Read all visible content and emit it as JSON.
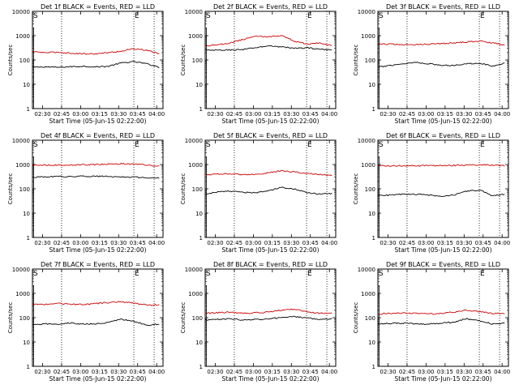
{
  "figure": {
    "xlabel": "Start Time (05-Jun-15 02:22:00)",
    "ylabel": "Counts/sec",
    "x_ticks": [
      "02:30",
      "02:45",
      "03:00",
      "03:15",
      "03:30",
      "03:45",
      "04:00"
    ],
    "y_ticks": [
      "1",
      "10",
      "100",
      "1000",
      "10000"
    ]
  },
  "chart_data": [
    {
      "type": "line",
      "title": "Det 1f BLACK = Events, RED = LLD",
      "xlabel": "Start Time (05-Jun-15 02:22:00)",
      "ylabel": "Counts/sec",
      "x_range_min": [
        0,
        103
      ],
      "y_scale": "log",
      "ylim": [
        1,
        10000
      ],
      "x_min": [
        0,
        10,
        20,
        30,
        40,
        50,
        60,
        70,
        80,
        90,
        100
      ],
      "series": [
        {
          "name": "Events",
          "color": "#000000",
          "values": [
            50,
            52,
            50,
            53,
            55,
            52,
            55,
            75,
            85,
            70,
            50
          ]
        },
        {
          "name": "LLD",
          "color": "#cc0000",
          "values": [
            220,
            200,
            210,
            190,
            180,
            180,
            200,
            230,
            290,
            250,
            180
          ]
        }
      ],
      "dotted_x_min": [
        23,
        80,
        96
      ],
      "marker_text": [
        "S",
        "E"
      ]
    },
    {
      "type": "line",
      "title": "Det 2f BLACK = Events, RED = LLD",
      "xlabel": "Start Time (05-Jun-15 02:22:00)",
      "ylabel": "Counts/sec",
      "x_range_min": [
        0,
        103
      ],
      "y_scale": "log",
      "ylim": [
        1,
        10000
      ],
      "x_min": [
        0,
        10,
        20,
        30,
        40,
        50,
        60,
        70,
        80,
        90,
        100
      ],
      "series": [
        {
          "name": "Events",
          "color": "#000000",
          "values": [
            250,
            250,
            260,
            270,
            320,
            380,
            350,
            300,
            320,
            280,
            250
          ]
        },
        {
          "name": "LLD",
          "color": "#cc0000",
          "values": [
            380,
            420,
            500,
            700,
            950,
            900,
            1000,
            600,
            450,
            500,
            400
          ]
        }
      ],
      "dotted_x_min": [
        23,
        80,
        96
      ],
      "marker_text": [
        "S",
        "E"
      ]
    },
    {
      "type": "line",
      "title": "Det 3f BLACK = Events, RED = LLD",
      "xlabel": "Start Time (05-Jun-15 02:22:00)",
      "ylabel": "Counts/sec",
      "x_range_min": [
        0,
        103
      ],
      "y_scale": "log",
      "ylim": [
        1,
        10000
      ],
      "x_min": [
        0,
        10,
        20,
        30,
        40,
        50,
        60,
        70,
        80,
        90,
        100
      ],
      "series": [
        {
          "name": "Events",
          "color": "#000000",
          "values": [
            50,
            60,
            70,
            80,
            70,
            60,
            60,
            70,
            75,
            55,
            75
          ]
        },
        {
          "name": "LLD",
          "color": "#cc0000",
          "values": [
            450,
            450,
            420,
            430,
            450,
            480,
            500,
            550,
            600,
            500,
            420
          ]
        }
      ],
      "dotted_x_min": [
        23,
        80,
        96
      ],
      "marker_text": [
        "S",
        "E"
      ]
    },
    {
      "type": "line",
      "title": "Det 4f BLACK = Events, RED = LLD",
      "xlabel": "Start Time (05-Jun-15 02:22:00)",
      "ylabel": "Counts/sec",
      "x_range_min": [
        0,
        103
      ],
      "y_scale": "log",
      "ylim": [
        1,
        10000
      ],
      "x_min": [
        0,
        10,
        20,
        30,
        40,
        50,
        60,
        70,
        80,
        90,
        100
      ],
      "series": [
        {
          "name": "Events",
          "color": "#000000",
          "values": [
            300,
            310,
            320,
            320,
            330,
            330,
            320,
            310,
            300,
            290,
            280
          ]
        },
        {
          "name": "LLD",
          "color": "#cc0000",
          "values": [
            950,
            950,
            950,
            960,
            980,
            1000,
            1050,
            1080,
            1050,
            950,
            850
          ]
        }
      ],
      "dotted_x_min": [
        23,
        80,
        96
      ],
      "marker_text": [
        "S",
        "E"
      ]
    },
    {
      "type": "line",
      "title": "Det 5f BLACK = Events, RED = LLD",
      "xlabel": "Start Time (05-Jun-15 02:22:00)",
      "ylabel": "Counts/sec",
      "x_range_min": [
        0,
        103
      ],
      "y_scale": "log",
      "ylim": [
        1,
        10000
      ],
      "x_min": [
        0,
        10,
        20,
        30,
        40,
        50,
        60,
        70,
        80,
        90,
        100
      ],
      "series": [
        {
          "name": "Events",
          "color": "#000000",
          "values": [
            60,
            75,
            80,
            70,
            70,
            85,
            115,
            100,
            70,
            60,
            65
          ]
        },
        {
          "name": "LLD",
          "color": "#cc0000",
          "values": [
            380,
            400,
            420,
            380,
            400,
            450,
            550,
            500,
            420,
            400,
            350
          ]
        }
      ],
      "dotted_x_min": [
        23,
        80,
        96
      ],
      "marker_text": [
        "S",
        "E"
      ]
    },
    {
      "type": "line",
      "title": "Det 6f BLACK = Events, RED = LLD",
      "xlabel": "Start Time (05-Jun-15 02:22:00)",
      "ylabel": "Counts/sec",
      "x_range_min": [
        0,
        103
      ],
      "y_scale": "log",
      "ylim": [
        1,
        10000
      ],
      "x_min": [
        0,
        10,
        20,
        30,
        40,
        50,
        60,
        70,
        80,
        90,
        100
      ],
      "series": [
        {
          "name": "Events",
          "color": "#000000",
          "values": [
            55,
            55,
            60,
            60,
            55,
            50,
            55,
            80,
            90,
            50,
            60
          ]
        },
        {
          "name": "LLD",
          "color": "#cc0000",
          "values": [
            900,
            880,
            880,
            890,
            900,
            900,
            920,
            950,
            980,
            950,
            880
          ]
        }
      ],
      "dotted_x_min": [
        23,
        80,
        96
      ],
      "marker_text": [
        "S",
        "E"
      ]
    },
    {
      "type": "line",
      "title": "Det 7f BLACK = Events, RED = LLD",
      "xlabel": "Start Time (05-Jun-15 02:22:00)",
      "ylabel": "Counts/sec",
      "x_range_min": [
        0,
        103
      ],
      "y_scale": "log",
      "ylim": [
        1,
        10000
      ],
      "x_min": [
        0,
        10,
        20,
        30,
        40,
        50,
        60,
        70,
        80,
        90,
        100
      ],
      "series": [
        {
          "name": "Events",
          "color": "#000000",
          "values": [
            50,
            55,
            55,
            60,
            55,
            55,
            65,
            85,
            70,
            50,
            55
          ]
        },
        {
          "name": "LLD",
          "color": "#cc0000",
          "values": [
            350,
            360,
            380,
            360,
            350,
            380,
            420,
            450,
            400,
            330,
            340
          ]
        }
      ],
      "dotted_x_min": [
        23,
        80,
        96
      ],
      "marker_text": [
        "S",
        "E"
      ]
    },
    {
      "type": "line",
      "title": "Det 8f BLACK = Events, RED = LLD",
      "xlabel": "Start Time (05-Jun-15 02:22:00)",
      "ylabel": "Counts/sec",
      "x_range_min": [
        0,
        103
      ],
      "y_scale": "log",
      "ylim": [
        1,
        10000
      ],
      "x_min": [
        0,
        10,
        20,
        30,
        40,
        50,
        60,
        70,
        80,
        90,
        100
      ],
      "series": [
        {
          "name": "Events",
          "color": "#000000",
          "values": [
            80,
            85,
            90,
            80,
            85,
            90,
            100,
            110,
            100,
            85,
            90
          ]
        },
        {
          "name": "LLD",
          "color": "#cc0000",
          "values": [
            150,
            160,
            170,
            150,
            160,
            170,
            200,
            220,
            180,
            150,
            160
          ]
        }
      ],
      "dotted_x_min": [
        23,
        80,
        96
      ],
      "marker_text": [
        "S",
        "E"
      ]
    },
    {
      "type": "line",
      "title": "Det 9f BLACK = Events, RED = LLD",
      "xlabel": "Start Time (05-Jun-15 02:22:00)",
      "ylabel": "Counts/sec",
      "x_range_min": [
        0,
        103
      ],
      "y_scale": "log",
      "ylim": [
        1,
        10000
      ],
      "x_min": [
        0,
        10,
        20,
        30,
        40,
        50,
        60,
        70,
        80,
        90,
        100
      ],
      "series": [
        {
          "name": "Events",
          "color": "#000000",
          "values": [
            55,
            58,
            60,
            55,
            55,
            60,
            65,
            90,
            75,
            55,
            60
          ]
        },
        {
          "name": "LLD",
          "color": "#cc0000",
          "values": [
            140,
            150,
            155,
            150,
            145,
            150,
            170,
            200,
            180,
            150,
            150
          ]
        }
      ],
      "dotted_x_min": [
        23,
        80,
        96
      ],
      "marker_text": [
        "S",
        "E"
      ]
    }
  ]
}
